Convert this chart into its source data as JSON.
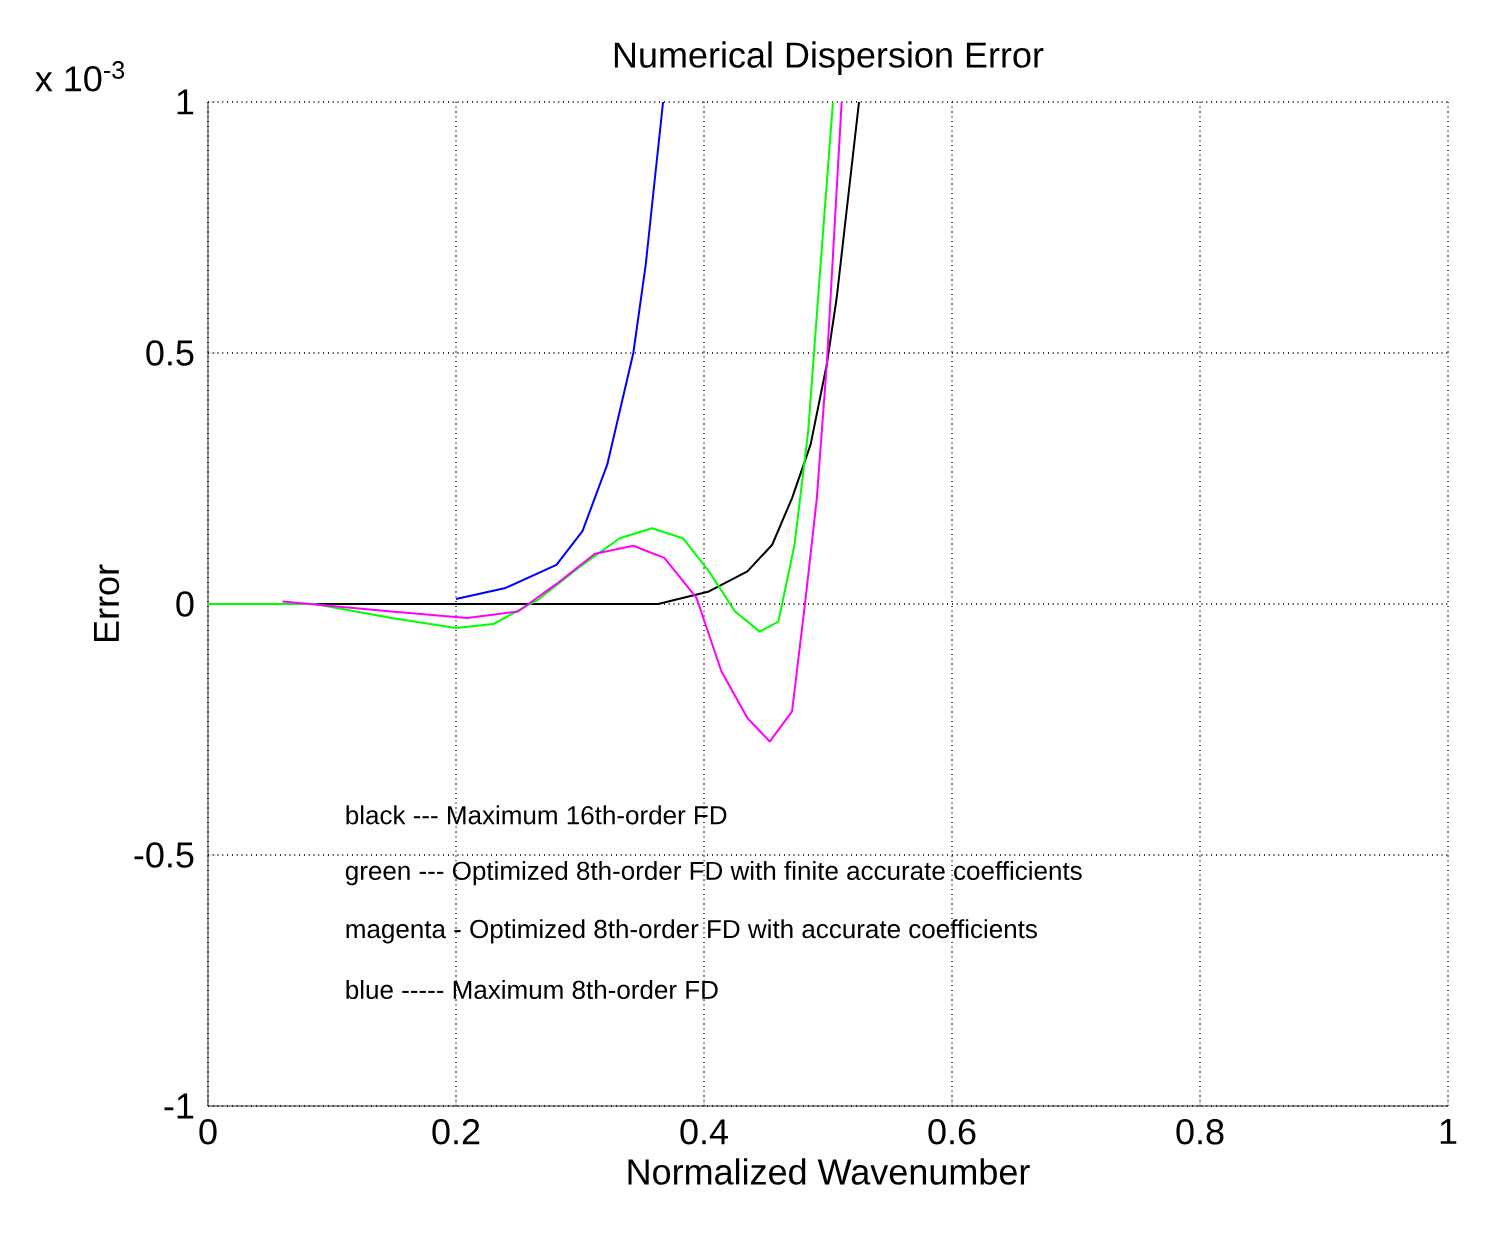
{
  "chart_data": {
    "type": "line",
    "title": "Numerical Dispersion Error",
    "xlabel": "Normalized Wavenumber",
    "ylabel": "Error",
    "xlim": [
      0,
      1
    ],
    "ylim": [
      -1,
      1
    ],
    "xticks": [
      0,
      0.2,
      0.4,
      0.6,
      0.8,
      1
    ],
    "yticks": [
      -1,
      -0.5,
      0,
      0.5,
      1
    ],
    "grid": true,
    "line_style": "solid",
    "marker": "none",
    "series": [
      {
        "color": "#000000",
        "x": [
          0,
          0.2,
          0.363,
          0.404,
          0.435,
          0.455,
          0.471,
          0.486,
          0.499,
          0.507,
          0.525
        ],
        "values": [
          0,
          0,
          0,
          0.025,
          0.065,
          0.118,
          0.211,
          0.318,
          0.477,
          0.61,
          1
        ]
      },
      {
        "color": "#00ff00",
        "x": [
          0,
          0.086,
          0.148,
          0.2,
          0.23,
          0.266,
          0.302,
          0.332,
          0.358,
          0.383,
          0.404,
          0.425,
          0.445,
          0.46,
          0.473,
          0.484,
          0.494,
          0.504
        ],
        "values": [
          0,
          0,
          -0.028,
          -0.048,
          -0.04,
          0.008,
          0.078,
          0.131,
          0.151,
          0.131,
          0.065,
          -0.015,
          -0.055,
          -0.035,
          0.118,
          0.344,
          0.676,
          1
        ]
      },
      {
        "color": "#ff00ff",
        "x": [
          0.06,
          0.148,
          0.209,
          0.25,
          0.281,
          0.312,
          0.343,
          0.368,
          0.394,
          0.414,
          0.435,
          0.453,
          0.471,
          0.482,
          0.491,
          0.499,
          0.511
        ],
        "values": [
          0.005,
          -0.015,
          -0.028,
          -0.015,
          0.04,
          0.1,
          0.116,
          0.092,
          0.012,
          -0.134,
          -0.227,
          -0.274,
          -0.214,
          0.012,
          0.211,
          0.477,
          1
        ]
      },
      {
        "color": "#0000ff",
        "x": [
          0.2,
          0.24,
          0.281,
          0.302,
          0.322,
          0.343,
          0.353,
          0.361,
          0.367
        ],
        "values": [
          0.01,
          0.032,
          0.078,
          0.145,
          0.278,
          0.5,
          0.676,
          0.862,
          1
        ]
      }
    ],
    "annotations": [
      "x 10$^{-3}$",
      "black --- Maximum 16th-order FD",
      "green --- Optimized 8th-order FD with finite accurate coefficients",
      "magenta - Optimized 8th-order FD with accurate coefficients",
      "blue ----- Maximum 8th-order FD"
    ]
  }
}
